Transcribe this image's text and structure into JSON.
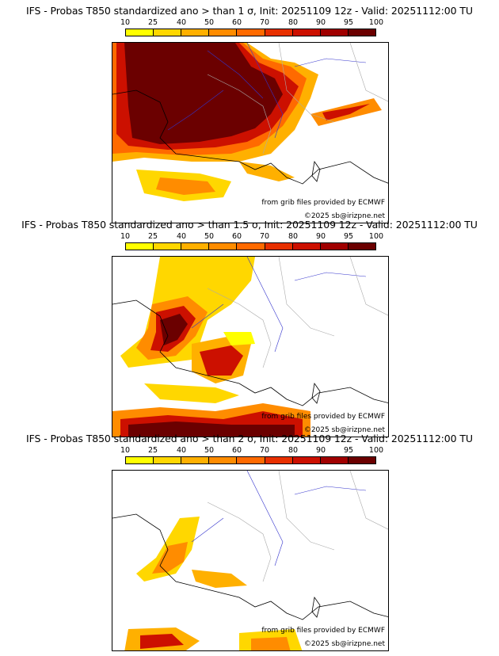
{
  "legend": {
    "ticks": [
      "10",
      "25",
      "40",
      "50",
      "60",
      "70",
      "80",
      "90",
      "95",
      "100"
    ],
    "colors": [
      "#ffff00",
      "#ffd700",
      "#ffb000",
      "#ff8c00",
      "#ff6a00",
      "#e83000",
      "#cc1000",
      "#a00000",
      "#6b0000"
    ]
  },
  "credits": {
    "source": "from grib files provided by ECMWF",
    "copyright": "©2025 sb@irizpne.net"
  },
  "panels": [
    {
      "title": "IFS - Probas T850  standardized ano > than 1 σ, Init: 20251109 12z - Valid: 20251112:00 TU"
    },
    {
      "title": "IFS - Probas T850  standardized ano > than 1.5 σ, Init: 20251109 12z - Valid: 20251112:00 TU"
    },
    {
      "title": "IFS - Probas T850  standardized ano > than 2 σ, Init: 20251109 12z - Valid: 20251112:00 TU"
    }
  ]
}
